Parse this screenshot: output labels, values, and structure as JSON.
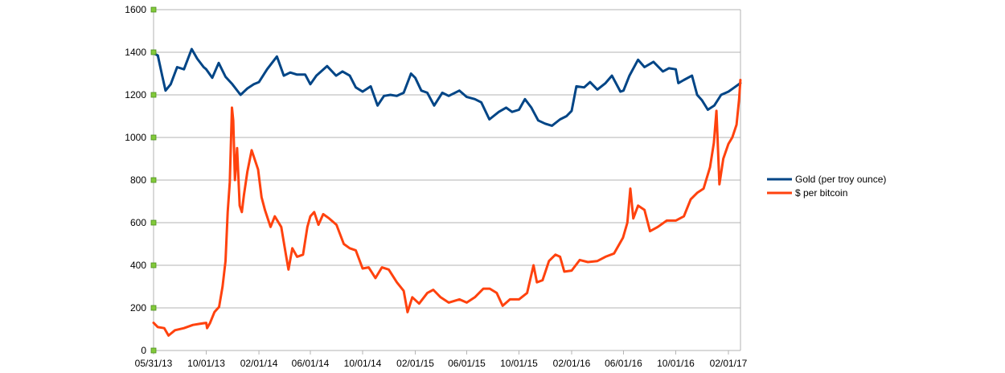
{
  "chart_data": {
    "type": "line",
    "title": "",
    "xlabel": "",
    "ylabel": "",
    "ylim": [
      0,
      1600
    ],
    "yticks": [
      0,
      200,
      400,
      600,
      800,
      1000,
      1200,
      1400,
      1600
    ],
    "x_tick_labels": [
      "05/31/13",
      "10/01/13",
      "02/01/14",
      "06/01/14",
      "10/01/14",
      "02/01/15",
      "06/01/15",
      "10/01/15",
      "02/01/16",
      "06/01/16",
      "10/01/16",
      "02/01/17"
    ],
    "grid": "horizontal",
    "legend_position": "right",
    "series": [
      {
        "name": "Gold (per troy ounce)",
        "color": "#004586",
        "points": [
          [
            "05/31/13",
            1395
          ],
          [
            "06/10/13",
            1385
          ],
          [
            "06/20/13",
            1290
          ],
          [
            "06/28/13",
            1220
          ],
          [
            "07/10/13",
            1250
          ],
          [
            "07/25/13",
            1330
          ],
          [
            "08/10/13",
            1320
          ],
          [
            "08/28/13",
            1415
          ],
          [
            "09/10/13",
            1370
          ],
          [
            "09/25/13",
            1330
          ],
          [
            "10/01/13",
            1320
          ],
          [
            "10/15/13",
            1280
          ],
          [
            "10/30/13",
            1350
          ],
          [
            "11/15/13",
            1285
          ],
          [
            "12/01/13",
            1250
          ],
          [
            "12/20/13",
            1200
          ],
          [
            "01/05/14",
            1230
          ],
          [
            "01/20/14",
            1250
          ],
          [
            "02/01/14",
            1260
          ],
          [
            "02/20/14",
            1320
          ],
          [
            "03/15/14",
            1380
          ],
          [
            "03/31/14",
            1290
          ],
          [
            "04/15/14",
            1305
          ],
          [
            "05/01/14",
            1295
          ],
          [
            "05/20/14",
            1295
          ],
          [
            "06/01/14",
            1250
          ],
          [
            "06/15/14",
            1290
          ],
          [
            "07/10/14",
            1335
          ],
          [
            "07/31/14",
            1290
          ],
          [
            "08/15/14",
            1310
          ],
          [
            "09/01/14",
            1290
          ],
          [
            "09/15/14",
            1235
          ],
          [
            "10/01/14",
            1215
          ],
          [
            "10/20/14",
            1240
          ],
          [
            "11/05/14",
            1150
          ],
          [
            "11/20/14",
            1195
          ],
          [
            "12/05/14",
            1200
          ],
          [
            "12/20/14",
            1195
          ],
          [
            "01/05/15",
            1210
          ],
          [
            "01/22/15",
            1300
          ],
          [
            "02/01/15",
            1280
          ],
          [
            "02/15/15",
            1220
          ],
          [
            "03/01/15",
            1210
          ],
          [
            "03/17/15",
            1150
          ],
          [
            "04/05/15",
            1210
          ],
          [
            "04/20/15",
            1195
          ],
          [
            "05/15/15",
            1220
          ],
          [
            "06/01/15",
            1190
          ],
          [
            "06/20/15",
            1180
          ],
          [
            "07/05/15",
            1165
          ],
          [
            "07/24/15",
            1085
          ],
          [
            "08/15/15",
            1120
          ],
          [
            "09/01/15",
            1140
          ],
          [
            "09/15/15",
            1120
          ],
          [
            "10/01/15",
            1130
          ],
          [
            "10/15/15",
            1180
          ],
          [
            "10/30/15",
            1140
          ],
          [
            "11/15/15",
            1080
          ],
          [
            "12/01/15",
            1065
          ],
          [
            "12/17/15",
            1055
          ],
          [
            "01/05/16",
            1085
          ],
          [
            "01/20/16",
            1100
          ],
          [
            "02/01/16",
            1125
          ],
          [
            "02/12/16",
            1240
          ],
          [
            "03/01/16",
            1235
          ],
          [
            "03/15/16",
            1260
          ],
          [
            "04/01/16",
            1225
          ],
          [
            "04/20/16",
            1255
          ],
          [
            "05/05/16",
            1290
          ],
          [
            "05/25/16",
            1215
          ],
          [
            "06/01/16",
            1220
          ],
          [
            "06/15/16",
            1290
          ],
          [
            "07/05/16",
            1365
          ],
          [
            "07/20/16",
            1330
          ],
          [
            "08/10/16",
            1355
          ],
          [
            "09/01/16",
            1310
          ],
          [
            "09/15/16",
            1325
          ],
          [
            "10/01/16",
            1320
          ],
          [
            "10/07/16",
            1255
          ],
          [
            "10/20/16",
            1270
          ],
          [
            "11/08/16",
            1290
          ],
          [
            "11/20/16",
            1200
          ],
          [
            "12/01/16",
            1175
          ],
          [
            "12/15/16",
            1130
          ],
          [
            "12/30/16",
            1150
          ],
          [
            "01/15/17",
            1200
          ],
          [
            "02/01/17",
            1215
          ],
          [
            "02/15/17",
            1235
          ],
          [
            "03/01/17",
            1255
          ]
        ]
      },
      {
        "name": "$ per bitcoin",
        "color": "#ff420e",
        "points": [
          [
            "05/31/13",
            130
          ],
          [
            "06/10/13",
            110
          ],
          [
            "06/25/13",
            105
          ],
          [
            "07/05/13",
            70
          ],
          [
            "07/20/13",
            95
          ],
          [
            "08/10/13",
            105
          ],
          [
            "08/31/13",
            120
          ],
          [
            "09/15/13",
            125
          ],
          [
            "10/01/13",
            130
          ],
          [
            "10/03/13",
            105
          ],
          [
            "10/10/13",
            130
          ],
          [
            "10/20/13",
            180
          ],
          [
            "10/31/13",
            205
          ],
          [
            "11/08/13",
            300
          ],
          [
            "11/15/13",
            420
          ],
          [
            "11/20/13",
            650
          ],
          [
            "11/25/13",
            790
          ],
          [
            "11/30/13",
            1140
          ],
          [
            "12/03/13",
            1080
          ],
          [
            "12/07/13",
            800
          ],
          [
            "12/12/13",
            950
          ],
          [
            "12/18/13",
            680
          ],
          [
            "12/23/13",
            650
          ],
          [
            "12/28/13",
            730
          ],
          [
            "01/05/14",
            840
          ],
          [
            "01/15/14",
            940
          ],
          [
            "01/30/14",
            850
          ],
          [
            "02/07/14",
            720
          ],
          [
            "02/15/14",
            660
          ],
          [
            "02/28/14",
            580
          ],
          [
            "03/10/14",
            630
          ],
          [
            "03/25/14",
            580
          ],
          [
            "04/05/14",
            450
          ],
          [
            "04/11/14",
            380
          ],
          [
            "04/20/14",
            480
          ],
          [
            "05/01/14",
            440
          ],
          [
            "05/15/14",
            450
          ],
          [
            "05/25/14",
            580
          ],
          [
            "06/01/14",
            630
          ],
          [
            "06/10/14",
            650
          ],
          [
            "06/20/14",
            590
          ],
          [
            "07/01/14",
            640
          ],
          [
            "07/15/14",
            620
          ],
          [
            "08/01/14",
            590
          ],
          [
            "08/18/14",
            500
          ],
          [
            "09/01/14",
            480
          ],
          [
            "09/15/14",
            470
          ],
          [
            "10/01/14",
            385
          ],
          [
            "10/15/14",
            390
          ],
          [
            "10/31/14",
            340
          ],
          [
            "11/15/14",
            390
          ],
          [
            "12/01/14",
            380
          ],
          [
            "12/20/14",
            320
          ],
          [
            "01/05/15",
            280
          ],
          [
            "01/14/15",
            180
          ],
          [
            "01/25/15",
            250
          ],
          [
            "02/10/15",
            220
          ],
          [
            "03/01/15",
            270
          ],
          [
            "03/15/15",
            285
          ],
          [
            "04/01/15",
            250
          ],
          [
            "04/20/15",
            225
          ],
          [
            "05/15/15",
            240
          ],
          [
            "06/01/15",
            225
          ],
          [
            "06/20/15",
            250
          ],
          [
            "07/10/15",
            290
          ],
          [
            "07/25/15",
            290
          ],
          [
            "08/10/15",
            270
          ],
          [
            "08/24/15",
            210
          ],
          [
            "09/10/15",
            240
          ],
          [
            "10/01/15",
            240
          ],
          [
            "10/20/15",
            270
          ],
          [
            "11/04/15",
            400
          ],
          [
            "11/12/15",
            320
          ],
          [
            "11/25/15",
            330
          ],
          [
            "12/10/15",
            420
          ],
          [
            "12/25/15",
            450
          ],
          [
            "01/05/16",
            440
          ],
          [
            "01/15/16",
            370
          ],
          [
            "02/01/16",
            375
          ],
          [
            "02/20/16",
            425
          ],
          [
            "03/10/16",
            415
          ],
          [
            "04/01/16",
            420
          ],
          [
            "04/20/16",
            440
          ],
          [
            "05/10/16",
            455
          ],
          [
            "05/31/16",
            530
          ],
          [
            "06/10/16",
            600
          ],
          [
            "06/17/16",
            760
          ],
          [
            "06/24/16",
            620
          ],
          [
            "07/05/16",
            680
          ],
          [
            "07/20/16",
            660
          ],
          [
            "08/02/16",
            560
          ],
          [
            "08/20/16",
            580
          ],
          [
            "09/10/16",
            610
          ],
          [
            "10/01/16",
            610
          ],
          [
            "10/20/16",
            630
          ],
          [
            "11/05/16",
            710
          ],
          [
            "11/20/16",
            740
          ],
          [
            "12/05/16",
            760
          ],
          [
            "12/20/16",
            860
          ],
          [
            "12/29/16",
            975
          ],
          [
            "01/04/17",
            1125
          ],
          [
            "01/11/17",
            780
          ],
          [
            "01/20/17",
            900
          ],
          [
            "02/01/17",
            970
          ],
          [
            "02/10/17",
            1000
          ],
          [
            "02/20/17",
            1060
          ],
          [
            "02/26/17",
            1180
          ],
          [
            "03/01/17",
            1270
          ]
        ]
      }
    ]
  }
}
